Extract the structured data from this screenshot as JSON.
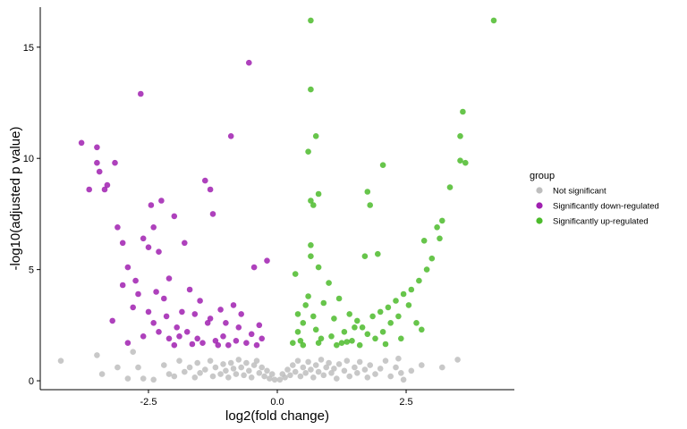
{
  "chart_data": {
    "type": "scatter",
    "title": "",
    "xlabel": "log2(fold change)",
    "ylabel": "-log10(adjusted p value)",
    "xlim": [
      -4.6,
      4.6
    ],
    "ylim": [
      -0.4,
      16.8
    ],
    "x_ticks": [
      -2.5,
      0.0,
      2.5
    ],
    "x_tick_labels": [
      "-2.5",
      "0.0",
      "2.5"
    ],
    "y_ticks": [
      0,
      5,
      10,
      15
    ],
    "y_tick_labels": [
      "0",
      "5",
      "10",
      "15"
    ],
    "grid": false,
    "legend": {
      "title": "group",
      "position": "right",
      "entries": [
        {
          "label": "Not significant",
          "color": "#bebebe"
        },
        {
          "label": "Significantly down-regulated",
          "color": "#a020b0"
        },
        {
          "label": "Significantly up-regulated",
          "color": "#4cbb2c"
        }
      ]
    },
    "series": [
      {
        "name": "Not significant",
        "color": "#bebebe",
        "points": [
          [
            -4.2,
            0.9
          ],
          [
            -3.5,
            1.15
          ],
          [
            -3.4,
            0.3
          ],
          [
            -3.1,
            0.6
          ],
          [
            -2.9,
            0.1
          ],
          [
            -2.8,
            1.3
          ],
          [
            -2.7,
            0.6
          ],
          [
            -2.6,
            0.1
          ],
          [
            -2.4,
            0.05
          ],
          [
            -2.2,
            0.7
          ],
          [
            -2.1,
            0.3
          ],
          [
            -2.0,
            0.2
          ],
          [
            -1.9,
            0.9
          ],
          [
            -1.8,
            0.4
          ],
          [
            -1.7,
            0.6
          ],
          [
            -1.6,
            0.15
          ],
          [
            -1.55,
            0.8
          ],
          [
            -1.5,
            0.35
          ],
          [
            -1.4,
            0.5
          ],
          [
            -1.3,
            0.9
          ],
          [
            -1.25,
            0.2
          ],
          [
            -1.2,
            0.6
          ],
          [
            -1.1,
            0.3
          ],
          [
            -1.05,
            0.75
          ],
          [
            -1.0,
            0.45
          ],
          [
            -0.95,
            0.15
          ],
          [
            -0.9,
            0.8
          ],
          [
            -0.85,
            0.55
          ],
          [
            -0.8,
            0.3
          ],
          [
            -0.75,
            0.95
          ],
          [
            -0.7,
            0.6
          ],
          [
            -0.65,
            0.25
          ],
          [
            -0.6,
            0.8
          ],
          [
            -0.55,
            0.45
          ],
          [
            -0.5,
            0.15
          ],
          [
            -0.45,
            0.7
          ],
          [
            -0.4,
            0.9
          ],
          [
            -0.35,
            0.35
          ],
          [
            -0.3,
            0.6
          ],
          [
            -0.25,
            0.2
          ],
          [
            -0.2,
            0.45
          ],
          [
            -0.15,
            0.1
          ],
          [
            -0.1,
            0.3
          ],
          [
            -0.05,
            0.05
          ],
          [
            0.05,
            0.05
          ],
          [
            0.1,
            0.3
          ],
          [
            0.15,
            0.15
          ],
          [
            0.2,
            0.5
          ],
          [
            0.25,
            0.25
          ],
          [
            0.3,
            0.7
          ],
          [
            0.35,
            0.4
          ],
          [
            0.4,
            0.9
          ],
          [
            0.45,
            0.2
          ],
          [
            0.5,
            0.6
          ],
          [
            0.55,
            0.35
          ],
          [
            0.6,
            0.85
          ],
          [
            0.65,
            0.5
          ],
          [
            0.7,
            0.15
          ],
          [
            0.75,
            0.7
          ],
          [
            0.8,
            0.4
          ],
          [
            0.85,
            0.95
          ],
          [
            0.9,
            0.25
          ],
          [
            0.95,
            0.6
          ],
          [
            1.0,
            0.8
          ],
          [
            1.05,
            0.35
          ],
          [
            1.1,
            0.55
          ],
          [
            1.15,
            0.1
          ],
          [
            1.2,
            0.75
          ],
          [
            1.3,
            0.45
          ],
          [
            1.35,
            0.9
          ],
          [
            1.4,
            0.2
          ],
          [
            1.5,
            0.6
          ],
          [
            1.55,
            0.35
          ],
          [
            1.6,
            0.85
          ],
          [
            1.7,
            0.5
          ],
          [
            1.75,
            0.15
          ],
          [
            1.8,
            0.7
          ],
          [
            1.9,
            0.3
          ],
          [
            2.0,
            0.55
          ],
          [
            2.1,
            0.9
          ],
          [
            2.2,
            0.2
          ],
          [
            2.3,
            0.6
          ],
          [
            2.35,
            1.0
          ],
          [
            2.4,
            0.35
          ],
          [
            2.45,
            0.05
          ],
          [
            2.6,
            0.45
          ],
          [
            2.8,
            0.7
          ],
          [
            3.2,
            0.6
          ],
          [
            3.5,
            0.95
          ]
        ]
      },
      {
        "name": "Significantly down-regulated",
        "color": "#a020b0",
        "points": [
          [
            -3.8,
            10.7
          ],
          [
            -3.65,
            8.6
          ],
          [
            -3.5,
            10.5
          ],
          [
            -3.5,
            9.8
          ],
          [
            -3.45,
            9.4
          ],
          [
            -3.35,
            8.6
          ],
          [
            -3.3,
            8.8
          ],
          [
            -3.15,
            9.8
          ],
          [
            -3.1,
            6.9
          ],
          [
            -3.0,
            6.2
          ],
          [
            -2.9,
            5.1
          ],
          [
            -2.75,
            4.5
          ],
          [
            -2.65,
            12.9
          ],
          [
            -2.6,
            6.4
          ],
          [
            -2.5,
            6.0
          ],
          [
            -2.45,
            7.9
          ],
          [
            -2.4,
            6.9
          ],
          [
            -2.35,
            4.0
          ],
          [
            -2.3,
            5.8
          ],
          [
            -2.25,
            8.1
          ],
          [
            -2.2,
            3.7
          ],
          [
            -2.15,
            2.9
          ],
          [
            -2.1,
            4.6
          ],
          [
            -2.0,
            7.4
          ],
          [
            -1.95,
            2.4
          ],
          [
            -1.85,
            3.1
          ],
          [
            -1.8,
            6.2
          ],
          [
            -1.75,
            2.2
          ],
          [
            -1.7,
            4.1
          ],
          [
            -1.6,
            3.0
          ],
          [
            -1.55,
            1.9
          ],
          [
            -1.5,
            3.6
          ],
          [
            -1.4,
            9.0
          ],
          [
            -1.35,
            2.6
          ],
          [
            -1.3,
            8.6
          ],
          [
            -1.25,
            7.5
          ],
          [
            -1.2,
            1.8
          ],
          [
            -1.1,
            3.2
          ],
          [
            -1.05,
            2.0
          ],
          [
            -1.0,
            2.6
          ],
          [
            -0.9,
            11.0
          ],
          [
            -0.85,
            3.4
          ],
          [
            -0.8,
            1.8
          ],
          [
            -0.75,
            2.4
          ],
          [
            -0.7,
            3.0
          ],
          [
            -0.6,
            1.7
          ],
          [
            -0.55,
            14.3
          ],
          [
            -0.5,
            2.1
          ],
          [
            -0.45,
            5.1
          ],
          [
            -0.4,
            1.6
          ],
          [
            -0.35,
            2.5
          ],
          [
            -0.3,
            1.9
          ],
          [
            -0.2,
            5.4
          ],
          [
            -3.2,
            2.7
          ],
          [
            -3.0,
            4.3
          ],
          [
            -2.8,
            3.3
          ],
          [
            -2.7,
            3.9
          ],
          [
            -2.5,
            3.1
          ],
          [
            -2.4,
            2.6
          ],
          [
            -2.3,
            2.2
          ],
          [
            -2.1,
            1.9
          ],
          [
            -2.0,
            1.6
          ],
          [
            -1.9,
            2.0
          ],
          [
            -1.65,
            1.65
          ],
          [
            -1.45,
            1.7
          ],
          [
            -1.15,
            1.6
          ],
          [
            -2.9,
            1.7
          ],
          [
            -2.6,
            2.0
          ],
          [
            -1.3,
            2.8
          ],
          [
            -0.95,
            1.6
          ]
        ]
      },
      {
        "name": "Significantly up-regulated",
        "color": "#4cbb2c",
        "points": [
          [
            0.65,
            16.2
          ],
          [
            4.2,
            16.2
          ],
          [
            0.65,
            13.1
          ],
          [
            0.75,
            11.0
          ],
          [
            3.6,
            12.1
          ],
          [
            3.55,
            11.0
          ],
          [
            0.6,
            10.3
          ],
          [
            3.55,
            9.9
          ],
          [
            3.65,
            9.8
          ],
          [
            2.05,
            9.7
          ],
          [
            0.65,
            8.1
          ],
          [
            0.8,
            8.4
          ],
          [
            0.7,
            7.9
          ],
          [
            1.75,
            8.5
          ],
          [
            1.8,
            7.9
          ],
          [
            3.35,
            8.7
          ],
          [
            3.2,
            7.2
          ],
          [
            3.1,
            6.9
          ],
          [
            0.65,
            6.1
          ],
          [
            2.85,
            6.3
          ],
          [
            3.15,
            6.4
          ],
          [
            1.7,
            5.6
          ],
          [
            1.95,
            5.7
          ],
          [
            0.65,
            5.6
          ],
          [
            0.35,
            4.8
          ],
          [
            0.8,
            5.1
          ],
          [
            1.0,
            4.4
          ],
          [
            1.2,
            3.7
          ],
          [
            1.4,
            3.0
          ],
          [
            1.55,
            2.7
          ],
          [
            1.65,
            2.4
          ],
          [
            1.85,
            2.9
          ],
          [
            2.0,
            3.1
          ],
          [
            2.15,
            3.3
          ],
          [
            2.3,
            3.6
          ],
          [
            2.45,
            3.9
          ],
          [
            2.6,
            4.1
          ],
          [
            2.75,
            4.5
          ],
          [
            2.9,
            5.0
          ],
          [
            3.0,
            5.5
          ],
          [
            0.4,
            2.2
          ],
          [
            0.45,
            1.8
          ],
          [
            0.5,
            2.6
          ],
          [
            0.55,
            3.4
          ],
          [
            0.6,
            3.8
          ],
          [
            0.7,
            2.9
          ],
          [
            0.75,
            2.3
          ],
          [
            0.85,
            1.9
          ],
          [
            0.9,
            3.5
          ],
          [
            1.05,
            2.0
          ],
          [
            1.1,
            2.8
          ],
          [
            1.25,
            1.7
          ],
          [
            1.3,
            2.2
          ],
          [
            1.45,
            1.8
          ],
          [
            1.5,
            2.4
          ],
          [
            1.6,
            1.6
          ],
          [
            1.75,
            2.1
          ],
          [
            1.9,
            1.9
          ],
          [
            2.05,
            2.2
          ],
          [
            2.2,
            2.6
          ],
          [
            2.35,
            2.9
          ],
          [
            2.55,
            3.4
          ],
          [
            2.7,
            2.6
          ],
          [
            2.8,
            2.3
          ],
          [
            0.3,
            1.7
          ],
          [
            0.5,
            1.6
          ],
          [
            0.8,
            1.7
          ],
          [
            1.15,
            1.6
          ],
          [
            1.35,
            1.75
          ],
          [
            2.1,
            1.65
          ],
          [
            2.4,
            1.9
          ],
          [
            0.4,
            3.0
          ]
        ]
      }
    ]
  }
}
